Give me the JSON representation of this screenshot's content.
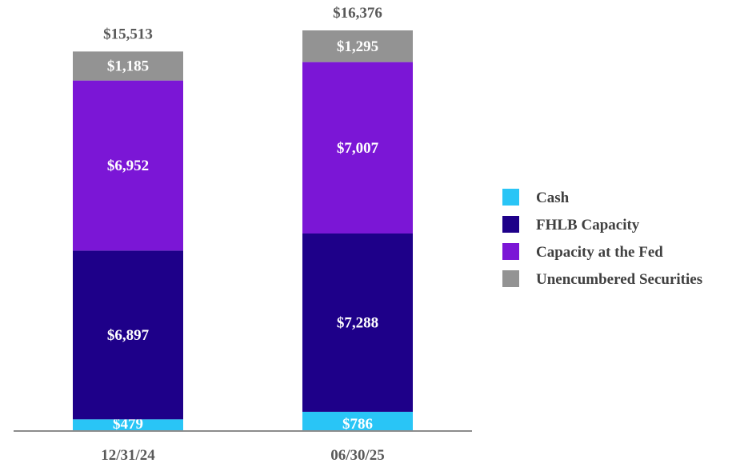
{
  "chart_data": {
    "type": "bar",
    "stacked": true,
    "categories": [
      "12/31/24",
      "06/30/25"
    ],
    "series": [
      {
        "name": "Cash",
        "values": [
          479,
          786
        ],
        "labels": [
          "$479",
          "$786"
        ],
        "color": "#29c5f6"
      },
      {
        "name": "FHLB Capacity",
        "values": [
          6897,
          7288
        ],
        "labels": [
          "$6,897",
          "$7,288"
        ],
        "color": "#1e0089"
      },
      {
        "name": "Capacity at the Fed",
        "values": [
          6952,
          7007
        ],
        "labels": [
          "$6,952",
          "$7,007"
        ],
        "color": "#7b16d6"
      },
      {
        "name": "Unencumbered Securities",
        "values": [
          1185,
          1295
        ],
        "labels": [
          "$1,185",
          "$1,295"
        ],
        "color": "#939393"
      }
    ],
    "totals": [
      15513,
      16376
    ],
    "total_labels": [
      "$15,513",
      "$16,376"
    ],
    "ylim": [
      0,
      16376
    ],
    "grid": false,
    "legend": "right",
    "title": "",
    "xlabel": "",
    "ylabel": ""
  }
}
